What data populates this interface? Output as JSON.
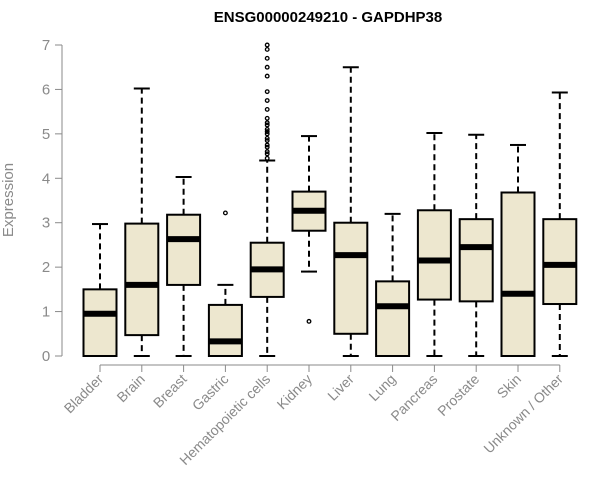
{
  "chart_data": {
    "type": "boxplot",
    "title": "ENSG00000249210 - GAPDHP38",
    "xlabel": "",
    "ylabel": "Expression",
    "ylim": [
      0,
      7
    ],
    "yticks": [
      "0",
      "1",
      "2",
      "3",
      "4",
      "5",
      "6",
      "7"
    ],
    "grid": false,
    "box_fill": "#ede7cf",
    "box_stroke": "#000000",
    "axis_color": "#8a8a8a",
    "categories": [
      "Bladder",
      "Brain",
      "Breast",
      "Gastric",
      "Hematopoietic cells",
      "Kidney",
      "Liver",
      "Lung",
      "Pancreas",
      "Prostate",
      "Skin",
      "Unknown / Other"
    ],
    "boxes": [
      {
        "label": "Bladder",
        "min": 0,
        "q1": 0,
        "median": 0.95,
        "q3": 1.5,
        "max": 2.97,
        "outliers": []
      },
      {
        "label": "Brain",
        "min": 0,
        "q1": 0.47,
        "median": 1.6,
        "q3": 2.98,
        "max": 6.02,
        "outliers": []
      },
      {
        "label": "Breast",
        "min": 0,
        "q1": 1.6,
        "median": 2.63,
        "q3": 3.18,
        "max": 4.03,
        "outliers": []
      },
      {
        "label": "Gastric",
        "min": 0,
        "q1": 0,
        "median": 0.33,
        "q3": 1.15,
        "max": 1.6,
        "outliers": [
          3.22
        ]
      },
      {
        "label": "Hematopoietic cells",
        "min": 0,
        "q1": 1.33,
        "median": 1.95,
        "q3": 2.55,
        "max": 4.4,
        "outliers": [
          4.45,
          4.55,
          4.6,
          4.7,
          4.75,
          4.85,
          4.9,
          5.0,
          5.05,
          5.1,
          5.2,
          5.25,
          5.35,
          5.55,
          5.75,
          5.95,
          6.3,
          6.5,
          6.7,
          6.9,
          7.0
        ]
      },
      {
        "label": "Kidney",
        "min": 1.9,
        "q1": 2.82,
        "median": 3.27,
        "q3": 3.7,
        "max": 4.95,
        "outliers": [
          0.78
        ]
      },
      {
        "label": "Liver",
        "min": 0,
        "q1": 0.5,
        "median": 2.27,
        "q3": 3.0,
        "max": 6.5,
        "outliers": []
      },
      {
        "label": "Lung",
        "min": 0,
        "q1": 0,
        "median": 1.12,
        "q3": 1.68,
        "max": 3.2,
        "outliers": []
      },
      {
        "label": "Pancreas",
        "min": 0,
        "q1": 1.27,
        "median": 2.15,
        "q3": 3.28,
        "max": 5.02,
        "outliers": []
      },
      {
        "label": "Prostate",
        "min": 0,
        "q1": 1.23,
        "median": 2.45,
        "q3": 3.08,
        "max": 4.98,
        "outliers": []
      },
      {
        "label": "Skin",
        "min": 0,
        "q1": 0,
        "median": 1.4,
        "q3": 3.68,
        "max": 4.75,
        "outliers": []
      },
      {
        "label": "Unknown / Other",
        "min": 0,
        "q1": 1.17,
        "median": 2.05,
        "q3": 3.08,
        "max": 5.93,
        "outliers": []
      }
    ]
  }
}
